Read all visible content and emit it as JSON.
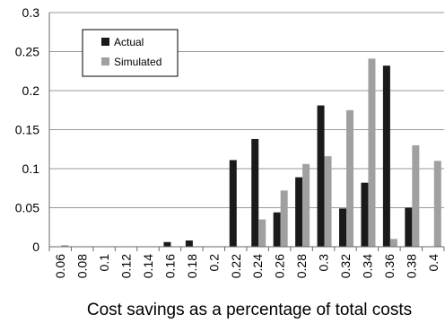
{
  "chart_data": {
    "type": "bar",
    "title": "",
    "xlabel": "Cost savings as a percentage of total costs",
    "ylabel": "",
    "ylim": [
      0,
      0.3
    ],
    "y_ticks": [
      "0",
      "0.05",
      "0.1",
      "0.15",
      "0.2",
      "0.25",
      "0.3"
    ],
    "categories": [
      "0.06",
      "0.08",
      "0.1",
      "0.12",
      "0.14",
      "0.16",
      "0.18",
      "0.2",
      "0.22",
      "0.24",
      "0.26",
      "0.28",
      "0.3",
      "0.32",
      "0.34",
      "0.36",
      "0.38",
      "0.4"
    ],
    "grid": "horizontal",
    "legend_position": "top-left",
    "series": [
      {
        "name": "Actual",
        "color": "#1a1a1a",
        "values": [
          0.0,
          0.0,
          0.0,
          0.0,
          0.0,
          0.006,
          0.008,
          0.0,
          0.111,
          0.138,
          0.044,
          0.089,
          0.181,
          0.049,
          0.082,
          0.232,
          0.05,
          0.0
        ]
      },
      {
        "name": "Simulated",
        "color": "#a0a0a0",
        "values": [
          0.002,
          0.0,
          0.0,
          0.0,
          0.0,
          0.0,
          0.0,
          0.0,
          0.0,
          0.035,
          0.072,
          0.106,
          0.116,
          0.175,
          0.241,
          0.01,
          0.13,
          0.11
        ]
      }
    ]
  }
}
